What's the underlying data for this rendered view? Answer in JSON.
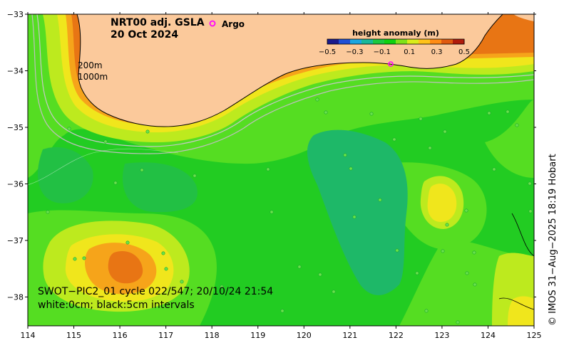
{
  "title": {
    "line1": "NRT00 adj. GSLA",
    "line2": "20 Oct 2024"
  },
  "legend": {
    "argo_label": "Argo",
    "argo_color": "#ff00ff"
  },
  "isobaths": {
    "label_200": "200m",
    "label_1000": "1000m"
  },
  "colorbar": {
    "title": "height anomaly (m)",
    "ticks": [
      "−0.5",
      "−0.3",
      "−0.1",
      "0.1",
      "0.3",
      "0.5"
    ],
    "colors": [
      "#1a1a8c",
      "#1f4fd6",
      "#1aa6e0",
      "#19b89a",
      "#1cc940",
      "#0fd10f",
      "#7fe21a",
      "#d9ec1a",
      "#ffc21a",
      "#ff8c14",
      "#e05a10",
      "#b01c0c"
    ]
  },
  "annotation": {
    "line1": "SWOT−PIC2_01 cycle 022/547; 20/10/24 21:54",
    "line2": "white:0cm; black:5cm intervals"
  },
  "credit": "© IMOS 31−Aug−2025 18:19 Hobart",
  "axes": {
    "x_ticks": [
      "114",
      "115",
      "116",
      "117",
      "118",
      "119",
      "120",
      "121",
      "122",
      "123",
      "124",
      "125"
    ],
    "y_ticks": [
      "−33",
      "−34",
      "−35",
      "−36",
      "−37",
      "−38"
    ]
  },
  "colors": {
    "land": "#fbc99b",
    "sea_base": "#22cc22",
    "sea_light": "#55dd22",
    "yellow_green": "#bdea1e",
    "yellow": "#f0e61c",
    "orange": "#f6a41a",
    "dark_orange": "#e87514",
    "teal": "#22b455"
  }
}
